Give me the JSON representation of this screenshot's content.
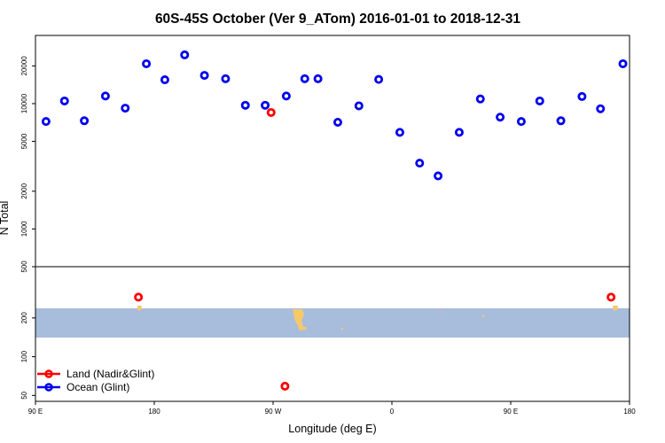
{
  "chart_data": {
    "type": "scatter",
    "title": "60S-45S October (Ver 9_ATom)   2016-01-01 to 2018-12-31",
    "xlabel": "Longitude (deg E)",
    "ylabel": "N Total",
    "x_ticks": [
      {
        "value": 90,
        "label": "90 E"
      },
      {
        "value": 180,
        "label": "180"
      },
      {
        "value": 270,
        "label": "90 W"
      },
      {
        "value": 360,
        "label": "0"
      },
      {
        "value": 450,
        "label": "90 E"
      },
      {
        "value": 540,
        "label": "180"
      }
    ],
    "xlim": [
      90,
      540
    ],
    "y_scale": "log",
    "upper_panel": {
      "ylim": [
        500,
        35000
      ],
      "y_ticks": [
        "500",
        "1000",
        "2000",
        "5000",
        "10000",
        "20000"
      ],
      "y_tick_values": [
        500,
        1000,
        2000,
        5000,
        10000,
        20000
      ]
    },
    "lower_panel": {
      "ylim": [
        45,
        500
      ],
      "y_ticks": [
        "50",
        "100",
        "200",
        "500"
      ],
      "y_tick_values": [
        50,
        100,
        200,
        500
      ]
    },
    "map_band_color": "#a8bcdc",
    "land_color": "#f5c86a",
    "series": [
      {
        "name": "Land (Nadir&Glint)",
        "color": "#ff0000",
        "points": [
          [
            268.5,
            8500
          ],
          [
            168,
            290
          ],
          [
            279,
            59
          ],
          [
            526,
            290
          ]
        ]
      },
      {
        "name": "Ocean (Glint)",
        "color": "#0000ee",
        "points": [
          [
            98,
            7200
          ],
          [
            112,
            10500
          ],
          [
            127,
            7300
          ],
          [
            143,
            11500
          ],
          [
            158,
            9200
          ],
          [
            174,
            20800
          ],
          [
            188,
            15500
          ],
          [
            203,
            24500
          ],
          [
            218,
            16800
          ],
          [
            234,
            15800
          ],
          [
            249,
            9700
          ],
          [
            264,
            9700
          ],
          [
            280,
            11500
          ],
          [
            294,
            15800
          ],
          [
            304,
            15800
          ],
          [
            319,
            7100
          ],
          [
            335,
            9600
          ],
          [
            350,
            15600
          ],
          [
            366,
            5900
          ],
          [
            381,
            3350
          ],
          [
            395,
            2650
          ],
          [
            411,
            5900
          ],
          [
            427,
            10900
          ],
          [
            442,
            7800
          ],
          [
            458,
            7200
          ],
          [
            472,
            10500
          ],
          [
            488,
            7300
          ],
          [
            504,
            11400
          ],
          [
            518,
            9100
          ],
          [
            535,
            20800
          ]
        ]
      }
    ],
    "legend": {
      "position": "bottom-left",
      "entries": [
        "Land (Nadir&Glint)",
        "Ocean (Glint)"
      ]
    }
  }
}
